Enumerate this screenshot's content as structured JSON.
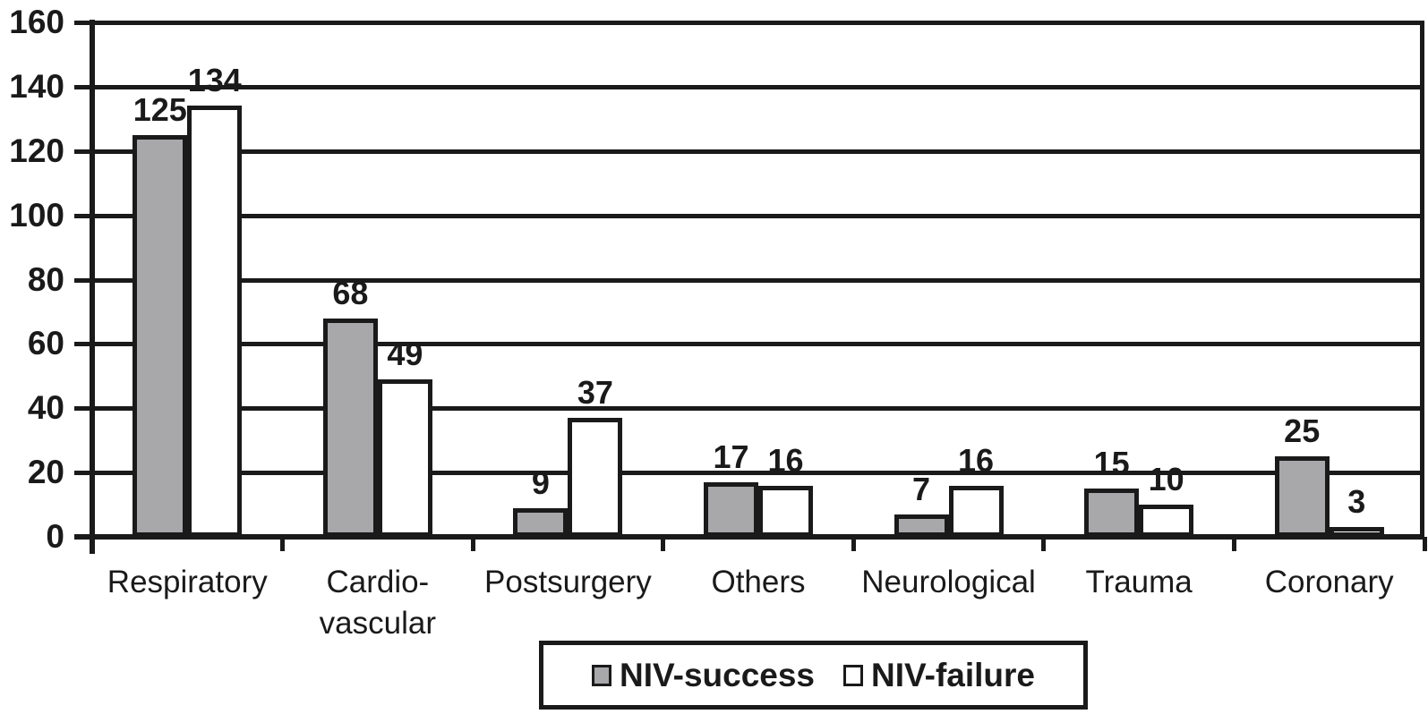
{
  "chart_data": {
    "type": "bar",
    "title": "",
    "xlabel": "",
    "ylabel": "",
    "categories": [
      "Respiratory",
      "Cardio-\nvascular",
      "Postsurgery",
      "Others",
      "Neurological",
      "Trauma",
      "Coronary"
    ],
    "series": [
      {
        "name": "NIV-success",
        "color": "#a8a8ab",
        "values": [
          125,
          68,
          9,
          17,
          7,
          15,
          25
        ]
      },
      {
        "name": "NIV-failure",
        "color": "#ffffff",
        "values": [
          134,
          49,
          37,
          16,
          16,
          10,
          3
        ]
      }
    ],
    "yticks": [
      0,
      20,
      40,
      60,
      80,
      100,
      120,
      140,
      160
    ],
    "ylim": [
      0,
      160
    ],
    "grid": true,
    "legend_position": "bottom-center",
    "line_color": "#1a1a1a",
    "background_color": "#ffffff"
  }
}
